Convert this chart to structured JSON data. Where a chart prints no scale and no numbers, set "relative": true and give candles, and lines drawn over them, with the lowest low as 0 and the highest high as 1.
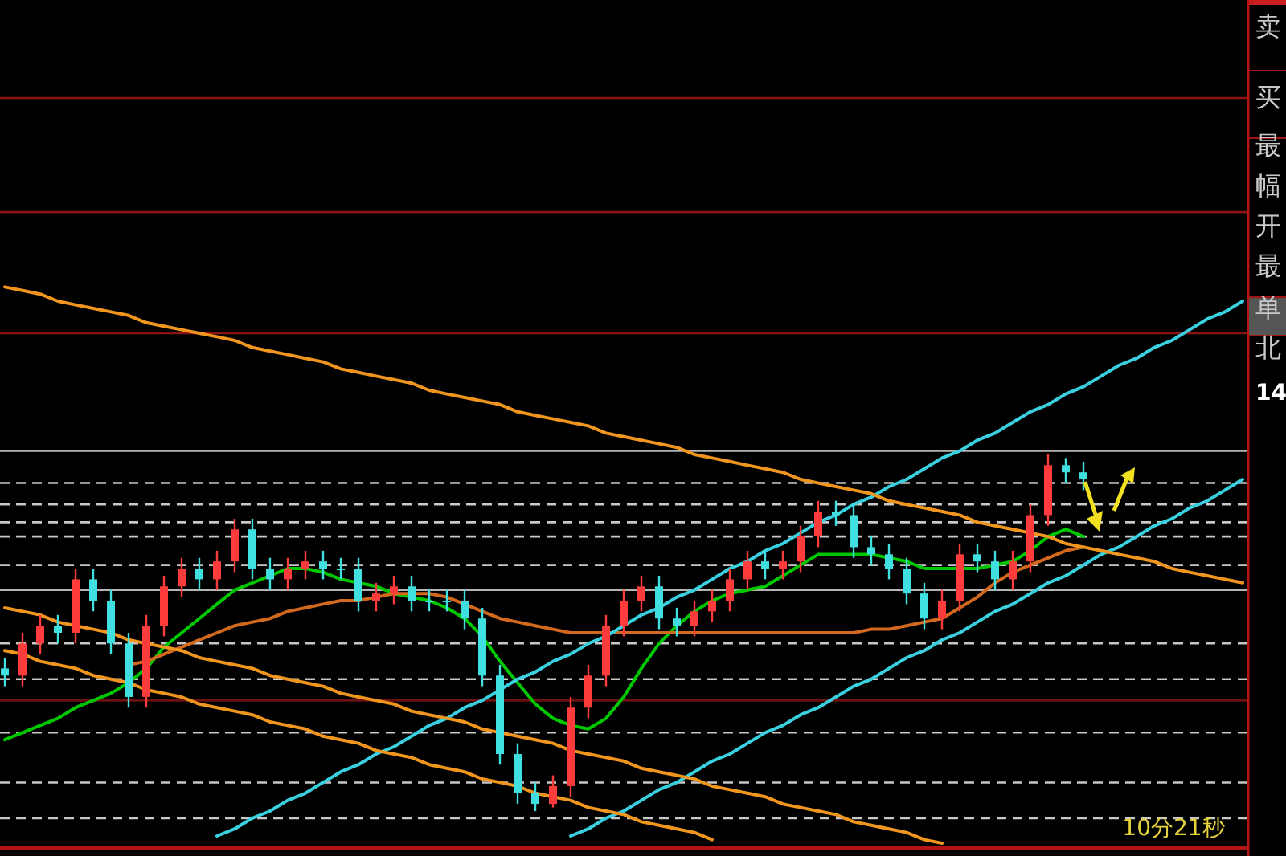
{
  "chart_data": {
    "type": "candlestick",
    "relative": true,
    "categories": [
      null,
      null,
      null,
      null,
      null,
      null,
      null,
      null,
      null,
      null,
      null,
      null,
      null,
      null,
      null,
      null,
      null,
      null,
      null,
      null,
      null,
      null,
      null,
      null,
      null,
      null,
      null,
      null,
      null,
      null,
      null,
      null,
      null,
      null,
      null,
      null,
      null,
      null,
      null,
      null,
      null,
      null,
      null,
      null,
      null,
      null,
      null,
      null,
      null,
      null,
      null,
      null,
      null,
      null,
      null,
      null,
      null,
      null,
      null,
      null,
      null,
      null,
      null,
      null,
      null,
      null,
      null,
      null,
      null,
      null,
      null
    ],
    "series": [
      {
        "ohlc": [
          [
            0.4,
            0.43,
            0.35,
            0.38
          ],
          [
            0.38,
            0.5,
            0.35,
            0.47
          ],
          [
            0.47,
            0.55,
            0.44,
            0.52
          ],
          [
            0.52,
            0.55,
            0.47,
            0.5
          ],
          [
            0.5,
            0.68,
            0.47,
            0.65
          ],
          [
            0.65,
            0.68,
            0.56,
            0.59
          ],
          [
            0.59,
            0.62,
            0.44,
            0.47
          ],
          [
            0.47,
            0.5,
            0.29,
            0.32
          ],
          [
            0.32,
            0.55,
            0.29,
            0.52
          ],
          [
            0.52,
            0.66,
            0.49,
            0.63
          ],
          [
            0.63,
            0.71,
            0.6,
            0.68
          ],
          [
            0.68,
            0.71,
            0.62,
            0.65
          ],
          [
            0.65,
            0.73,
            0.62,
            0.7
          ],
          [
            0.7,
            0.82,
            0.67,
            0.79
          ],
          [
            0.79,
            0.82,
            0.65,
            0.68
          ],
          [
            0.68,
            0.71,
            0.62,
            0.65
          ],
          [
            0.65,
            0.71,
            0.62,
            0.68
          ],
          [
            0.68,
            0.73,
            0.65,
            0.7
          ],
          [
            0.7,
            0.73,
            0.65,
            0.68
          ],
          [
            0.68,
            0.71,
            0.65,
            0.68
          ],
          [
            0.68,
            0.71,
            0.56,
            0.59
          ],
          [
            0.59,
            0.64,
            0.56,
            0.61
          ],
          [
            0.61,
            0.66,
            0.58,
            0.63
          ],
          [
            0.63,
            0.66,
            0.56,
            0.59
          ],
          [
            0.59,
            0.62,
            0.56,
            0.59
          ],
          [
            0.59,
            0.62,
            0.56,
            0.59
          ],
          [
            0.59,
            0.62,
            0.51,
            0.54
          ],
          [
            0.54,
            0.57,
            0.35,
            0.38
          ],
          [
            0.38,
            0.41,
            0.13,
            0.16
          ],
          [
            0.16,
            0.19,
            0.02,
            0.05
          ],
          [
            0.05,
            0.08,
            0.0,
            0.02
          ],
          [
            0.02,
            0.1,
            0.01,
            0.07
          ],
          [
            0.07,
            0.32,
            0.04,
            0.29
          ],
          [
            0.29,
            0.41,
            0.26,
            0.38
          ],
          [
            0.38,
            0.55,
            0.35,
            0.52
          ],
          [
            0.52,
            0.62,
            0.49,
            0.59
          ],
          [
            0.59,
            0.66,
            0.56,
            0.63
          ],
          [
            0.63,
            0.66,
            0.51,
            0.54
          ],
          [
            0.54,
            0.57,
            0.49,
            0.52
          ],
          [
            0.52,
            0.59,
            0.49,
            0.56
          ],
          [
            0.56,
            0.62,
            0.53,
            0.59
          ],
          [
            0.59,
            0.68,
            0.56,
            0.65
          ],
          [
            0.65,
            0.73,
            0.62,
            0.7
          ],
          [
            0.7,
            0.73,
            0.65,
            0.68
          ],
          [
            0.68,
            0.73,
            0.65,
            0.7
          ],
          [
            0.7,
            0.8,
            0.67,
            0.77
          ],
          [
            0.77,
            0.87,
            0.74,
            0.84
          ],
          [
            0.84,
            0.87,
            0.8,
            0.83
          ],
          [
            0.83,
            0.86,
            0.71,
            0.74
          ],
          [
            0.74,
            0.77,
            0.69,
            0.72
          ],
          [
            0.72,
            0.75,
            0.65,
            0.68
          ],
          [
            0.68,
            0.71,
            0.58,
            0.61
          ],
          [
            0.61,
            0.64,
            0.51,
            0.54
          ],
          [
            0.54,
            0.62,
            0.51,
            0.59
          ],
          [
            0.59,
            0.75,
            0.56,
            0.72
          ],
          [
            0.72,
            0.75,
            0.67,
            0.7
          ],
          [
            0.7,
            0.73,
            0.62,
            0.65
          ],
          [
            0.65,
            0.73,
            0.62,
            0.7
          ],
          [
            0.7,
            0.86,
            0.67,
            0.83
          ],
          [
            0.83,
            1.0,
            0.8,
            0.97
          ],
          [
            0.97,
            0.99,
            0.92,
            0.95
          ],
          [
            0.95,
            0.98,
            0.9,
            0.93
          ],
          null,
          null,
          null,
          null,
          null,
          null,
          null,
          null,
          null
        ],
        "colors": [
          "#40e0e0",
          "#ff3c3c",
          "#ff3c3c",
          "#40e0e0",
          "#ff3c3c",
          "#40e0e0",
          "#40e0e0",
          "#40e0e0",
          "#ff3c3c",
          "#ff3c3c",
          "#ff3c3c",
          "#40e0e0",
          "#ff3c3c",
          "#ff3c3c",
          "#40e0e0",
          "#40e0e0",
          "#ff3c3c",
          "#ff3c3c",
          "#40e0e0",
          "#40e0e0",
          "#40e0e0",
          "#ff3c3c",
          "#ff3c3c",
          "#40e0e0",
          "#40e0e0",
          "#40e0e0",
          "#40e0e0",
          "#40e0e0",
          "#40e0e0",
          "#40e0e0",
          "#40e0e0",
          "#ff3c3c",
          "#ff3c3c",
          "#ff3c3c",
          "#ff3c3c",
          "#ff3c3c",
          "#ff3c3c",
          "#40e0e0",
          "#40e0e0",
          "#ff3c3c",
          "#ff3c3c",
          "#ff3c3c",
          "#ff3c3c",
          "#40e0e0",
          "#ff3c3c",
          "#ff3c3c",
          "#ff3c3c",
          "#40e0e0",
          "#40e0e0",
          "#40e0e0",
          "#40e0e0",
          "#40e0e0",
          "#40e0e0",
          "#ff3c3c",
          "#ff3c3c",
          "#40e0e0",
          "#40e0e0",
          "#ff3c3c",
          "#ff3c3c",
          "#ff3c3c",
          "#40e0e0",
          "#40e0e0",
          null,
          null,
          null,
          null,
          null,
          null,
          null,
          null,
          null
        ]
      },
      {
        "type": "line",
        "color": "#00c800",
        "values": [
          0.2,
          0.22,
          0.24,
          0.26,
          0.29,
          0.31,
          0.33,
          0.36,
          0.4,
          0.46,
          0.5,
          0.54,
          0.58,
          0.62,
          0.64,
          0.66,
          0.68,
          0.68,
          0.67,
          0.65,
          0.64,
          0.63,
          0.61,
          0.6,
          0.59,
          0.57,
          0.54,
          0.49,
          0.42,
          0.36,
          0.3,
          0.26,
          0.24,
          0.23,
          0.26,
          0.32,
          0.4,
          0.47,
          0.52,
          0.56,
          0.59,
          0.61,
          0.62,
          0.63,
          0.66,
          0.69,
          0.72,
          0.72,
          0.72,
          0.72,
          0.71,
          0.7,
          0.68,
          0.68,
          0.68,
          0.68,
          0.69,
          0.7,
          0.73,
          0.77,
          0.79,
          0.77,
          null,
          null,
          null,
          null,
          null,
          null,
          null,
          null,
          null
        ]
      },
      {
        "type": "line",
        "color": "#d2691e",
        "values": [
          null,
          null,
          null,
          null,
          null,
          null,
          null,
          0.41,
          0.42,
          0.44,
          0.46,
          0.48,
          0.5,
          0.52,
          0.53,
          0.54,
          0.56,
          0.57,
          0.58,
          0.59,
          0.59,
          0.6,
          0.61,
          0.61,
          0.61,
          0.6,
          0.58,
          0.56,
          0.54,
          0.53,
          0.52,
          0.51,
          0.5,
          0.5,
          0.5,
          0.5,
          0.5,
          0.5,
          0.5,
          0.5,
          0.5,
          0.5,
          0.5,
          0.5,
          0.5,
          0.5,
          0.5,
          0.5,
          0.5,
          0.51,
          0.51,
          0.52,
          0.53,
          0.54,
          0.57,
          0.6,
          0.64,
          0.67,
          0.69,
          0.71,
          0.73,
          0.74,
          null,
          null,
          null,
          null,
          null,
          null,
          null,
          null,
          null
        ]
      },
      {
        "type": "line",
        "color": "#3ad0e0",
        "values": [
          null,
          null,
          null,
          null,
          null,
          null,
          null,
          null,
          null,
          null,
          null,
          null,
          -0.07,
          -0.05,
          -0.02,
          0.0,
          0.03,
          0.05,
          0.08,
          0.11,
          0.13,
          0.16,
          0.18,
          0.21,
          0.24,
          0.26,
          0.29,
          0.31,
          0.34,
          0.37,
          0.39,
          0.42,
          0.44,
          0.47,
          0.49,
          0.52,
          0.55,
          0.57,
          0.6,
          0.62,
          0.65,
          0.68,
          0.7,
          0.73,
          0.75,
          0.78,
          0.81,
          0.83,
          0.86,
          0.88,
          0.91,
          0.93,
          0.96,
          0.99,
          1.01,
          1.04,
          1.06,
          1.09,
          1.12,
          1.14,
          1.17,
          1.19,
          1.22,
          1.25,
          1.27,
          1.3,
          1.32,
          1.35,
          1.38,
          1.4,
          1.43
        ]
      },
      {
        "type": "line",
        "color": "#3ad0e0",
        "values": [
          null,
          null,
          null,
          null,
          null,
          null,
          null,
          null,
          null,
          null,
          null,
          null,
          null,
          null,
          null,
          null,
          null,
          null,
          null,
          null,
          null,
          null,
          null,
          null,
          null,
          null,
          null,
          null,
          null,
          null,
          null,
          null,
          -0.07,
          -0.05,
          -0.02,
          0.0,
          0.03,
          0.06,
          0.08,
          0.11,
          0.14,
          0.16,
          0.19,
          0.22,
          0.24,
          0.27,
          0.29,
          0.32,
          0.35,
          0.37,
          0.4,
          0.43,
          0.45,
          0.48,
          0.5,
          0.53,
          0.56,
          0.58,
          0.61,
          0.64,
          0.66,
          0.69,
          0.72,
          0.74,
          0.77,
          0.8,
          0.82,
          0.85,
          0.87,
          0.9,
          0.93
        ]
      },
      {
        "type": "line",
        "color": "#f0961e",
        "values": [
          1.47,
          1.46,
          1.45,
          1.43,
          1.42,
          1.41,
          1.4,
          1.39,
          1.37,
          1.36,
          1.35,
          1.34,
          1.33,
          1.32,
          1.3,
          1.29,
          1.28,
          1.27,
          1.26,
          1.24,
          1.23,
          1.22,
          1.21,
          1.2,
          1.18,
          1.17,
          1.16,
          1.15,
          1.14,
          1.12,
          1.11,
          1.1,
          1.09,
          1.08,
          1.06,
          1.05,
          1.04,
          1.03,
          1.02,
          1.0,
          0.99,
          0.98,
          0.97,
          0.96,
          0.95,
          0.93,
          0.92,
          0.91,
          0.9,
          0.89,
          0.87,
          0.86,
          0.85,
          0.84,
          0.83,
          0.81,
          0.8,
          0.79,
          0.78,
          0.77,
          0.75,
          0.74,
          0.73,
          0.72,
          0.71,
          0.7,
          0.68,
          0.67,
          0.66,
          0.65,
          0.64
        ]
      },
      {
        "type": "line",
        "color": "#f0961e",
        "values": [
          0.57,
          0.56,
          0.55,
          0.53,
          0.52,
          0.51,
          0.5,
          0.48,
          0.47,
          0.46,
          0.45,
          0.43,
          0.42,
          0.41,
          0.4,
          0.38,
          0.37,
          0.36,
          0.35,
          0.33,
          0.32,
          0.31,
          0.3,
          0.28,
          0.27,
          0.26,
          0.25,
          0.23,
          0.22,
          0.21,
          0.2,
          0.19,
          0.17,
          0.16,
          0.15,
          0.14,
          0.12,
          0.11,
          0.1,
          0.09,
          0.07,
          0.06,
          0.05,
          0.04,
          0.02,
          0.01,
          0.0,
          -0.01,
          -0.03,
          -0.04,
          -0.05,
          -0.06,
          -0.08,
          -0.09,
          null,
          null,
          null,
          null,
          null,
          null,
          null,
          null,
          null,
          null,
          null,
          null,
          null,
          null,
          null,
          null,
          null
        ]
      },
      {
        "type": "line",
        "color": "#f0961e",
        "values": [
          0.45,
          0.44,
          0.42,
          0.41,
          0.4,
          0.38,
          0.37,
          0.36,
          0.34,
          0.33,
          0.32,
          0.3,
          0.29,
          0.28,
          0.27,
          0.25,
          0.24,
          0.23,
          0.21,
          0.2,
          0.19,
          0.17,
          0.16,
          0.15,
          0.13,
          0.12,
          0.11,
          0.09,
          0.08,
          0.07,
          0.05,
          0.04,
          0.03,
          0.01,
          0.0,
          -0.01,
          -0.03,
          -0.04,
          -0.05,
          -0.06,
          -0.08,
          null,
          null,
          null,
          null,
          null,
          null,
          null,
          null,
          null,
          null,
          null,
          null,
          null,
          null,
          null,
          null,
          null,
          null,
          null,
          null,
          null,
          null,
          null,
          null,
          null,
          null,
          null,
          null,
          null,
          null
        ]
      }
    ],
    "ref_lines": [
      {
        "axis": "y",
        "value": 0.92,
        "color": "#c8c8c8",
        "line_style": "dashed"
      },
      {
        "axis": "y",
        "value": 0.86,
        "color": "#c8c8c8",
        "line_style": "dashed"
      },
      {
        "axis": "y",
        "value": 0.81,
        "color": "#c8c8c8",
        "line_style": "dashed"
      },
      {
        "axis": "y",
        "value": 0.77,
        "color": "#c8c8c8",
        "line_style": "dashed"
      },
      {
        "axis": "y",
        "value": 0.69,
        "color": "#c8c8c8",
        "line_style": "dashed"
      },
      {
        "axis": "y",
        "value": 0.47,
        "color": "#c8c8c8",
        "line_style": "dashed"
      },
      {
        "axis": "y",
        "value": 0.37,
        "color": "#c8c8c8",
        "line_style": "dashed"
      },
      {
        "axis": "y",
        "value": 0.22,
        "color": "#c8c8c8",
        "line_style": "dashed"
      },
      {
        "axis": "y",
        "value": 0.08,
        "color": "#c8c8c8",
        "line_style": "dashed"
      },
      {
        "axis": "y",
        "value": -0.02,
        "color": "#c8c8c8",
        "line_style": "dashed"
      },
      {
        "axis": "y",
        "value": 1.01,
        "color": "#b4b4b4",
        "line_style": "solid"
      },
      {
        "axis": "y",
        "value": 0.62,
        "color": "#b4b4b4",
        "line_style": "solid"
      },
      {
        "axis": "y",
        "value": 2.0,
        "color": "#8c1414",
        "line_style": "solid"
      },
      {
        "axis": "y",
        "value": 1.68,
        "color": "#8c1414",
        "line_style": "solid"
      },
      {
        "axis": "y",
        "value": 1.34,
        "color": "#8c1414",
        "line_style": "solid"
      },
      {
        "axis": "y",
        "value": 0.31,
        "color": "#6e1010",
        "line_style": "solid"
      }
    ],
    "annotations": [
      "10分21秒",
      "卖",
      "买",
      "最",
      "幅",
      "开",
      "最",
      "单",
      "北",
      "14"
    ]
  }
}
